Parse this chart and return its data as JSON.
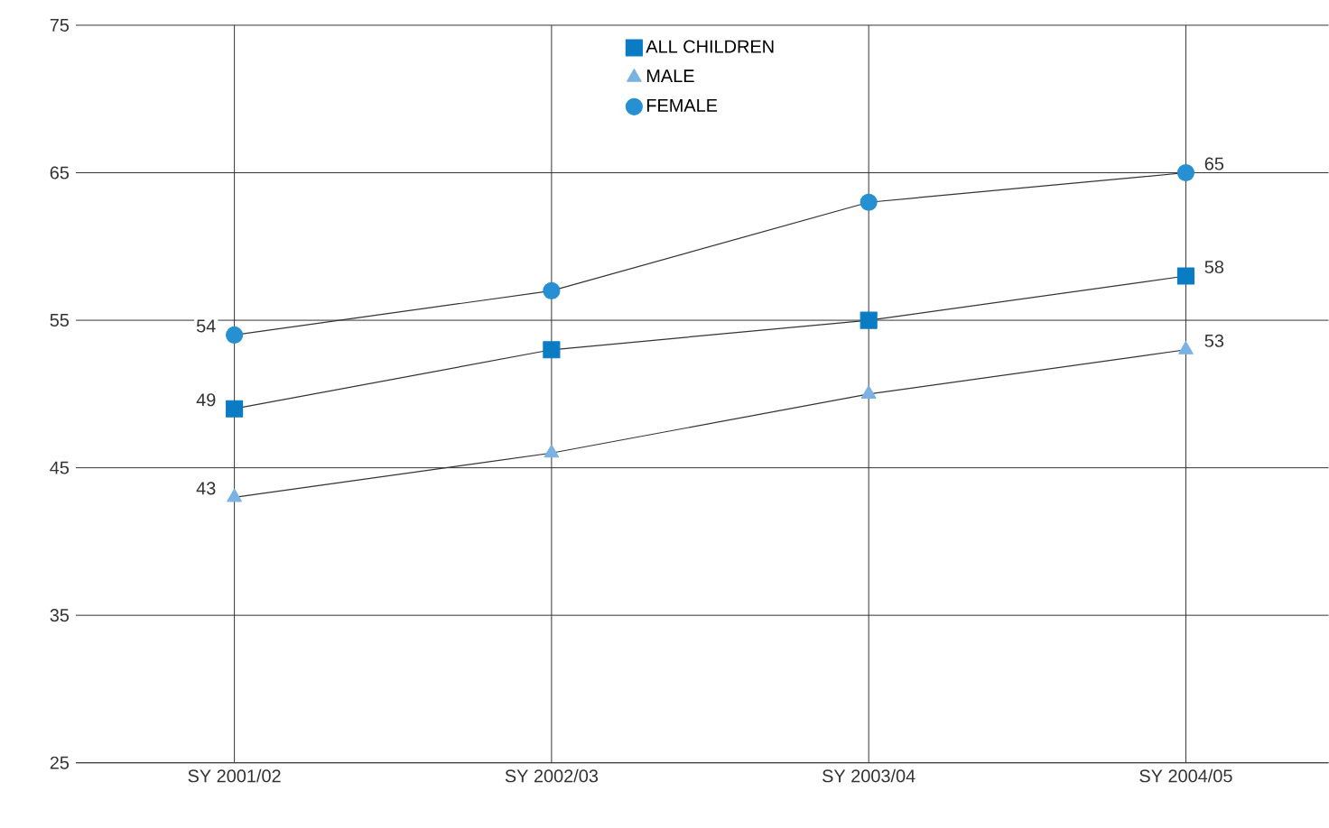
{
  "chart_data": {
    "type": "line",
    "categories": [
      "SY 2001/02",
      "SY 2002/03",
      "SY 2003/04",
      "SY 2004/05"
    ],
    "series": [
      {
        "name": "ALL CHILDREN",
        "color": "#0a7cc4",
        "marker": "square",
        "values": [
          49,
          53,
          55,
          58
        ],
        "value_labels": [
          "49",
          null,
          null,
          "58"
        ]
      },
      {
        "name": "MALE",
        "color": "#7ab2e2",
        "marker": "triangle",
        "values": [
          43,
          46,
          50,
          53
        ],
        "value_labels": [
          "43",
          null,
          null,
          "53"
        ]
      },
      {
        "name": "FEMALE",
        "color": "#2690d2",
        "marker": "circle",
        "values": [
          54,
          57,
          63,
          65
        ],
        "value_labels": [
          "54",
          null,
          null,
          "65"
        ]
      }
    ],
    "ylim": [
      25,
      75
    ],
    "yticks": [
      25,
      35,
      45,
      55,
      65,
      75
    ],
    "grid": true,
    "legend": "top"
  }
}
